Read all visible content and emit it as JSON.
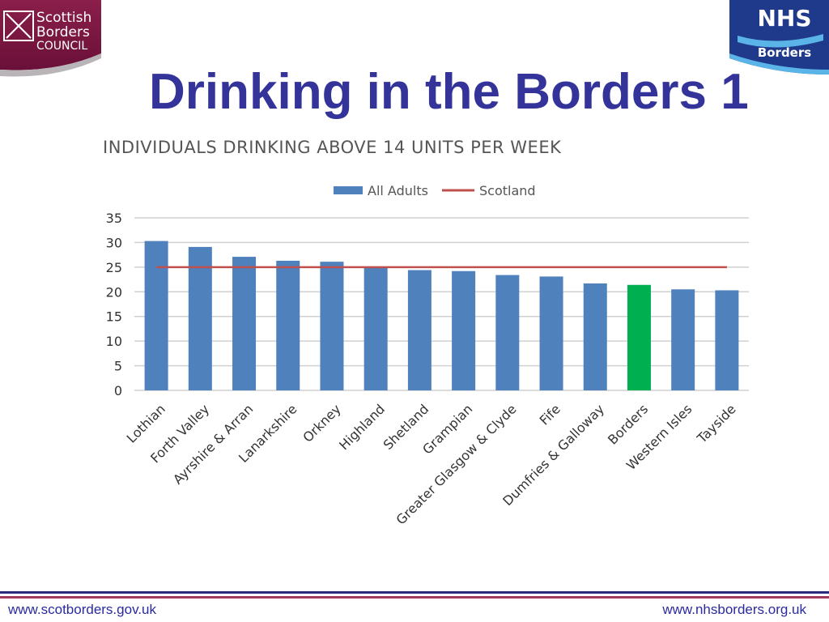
{
  "header": {
    "title": "Drinking in the Borders 1",
    "left_logo": {
      "line1": "Scottish",
      "line2": "Borders",
      "line3": "COUNCIL"
    },
    "right_logo": {
      "brand": "NHS",
      "sub": "Borders"
    }
  },
  "footer": {
    "left_url": "www.scotborders.gov.uk",
    "right_url": "www.nhsborders.org.uk"
  },
  "colors": {
    "bar": "#4f81bd",
    "highlight_bar": "#00b050",
    "scotland_line": "#c0504d",
    "title": "#33339a"
  },
  "chart_data": {
    "type": "bar",
    "title": "INDIVIDUALS DRINKING ABOVE 14 UNITS PER WEEK",
    "categories": [
      "Lothian",
      "Forth Valley",
      "Ayrshire & Arran",
      "Lanarkshire",
      "Orkney",
      "Highland",
      "Shetland",
      "Grampian",
      "Greater Glasgow & Clyde",
      "Fife",
      "Dumfries & Galloway",
      "Borders",
      "Western Isles",
      "Tayside"
    ],
    "series": [
      {
        "name": "All Adults",
        "values": [
          30.3,
          29.1,
          27.1,
          26.3,
          26.1,
          25.1,
          24.4,
          24.2,
          23.4,
          23.1,
          21.7,
          21.4,
          20.5,
          20.3
        ]
      }
    ],
    "reference_line": {
      "name": "Scotland",
      "value": 25
    },
    "highlight_category": "Borders",
    "ylim": [
      0,
      35
    ],
    "yticks": [
      0,
      5,
      10,
      15,
      20,
      25,
      30,
      35
    ],
    "legend": "top-center",
    "grid": true,
    "xlabel": "",
    "ylabel": ""
  }
}
